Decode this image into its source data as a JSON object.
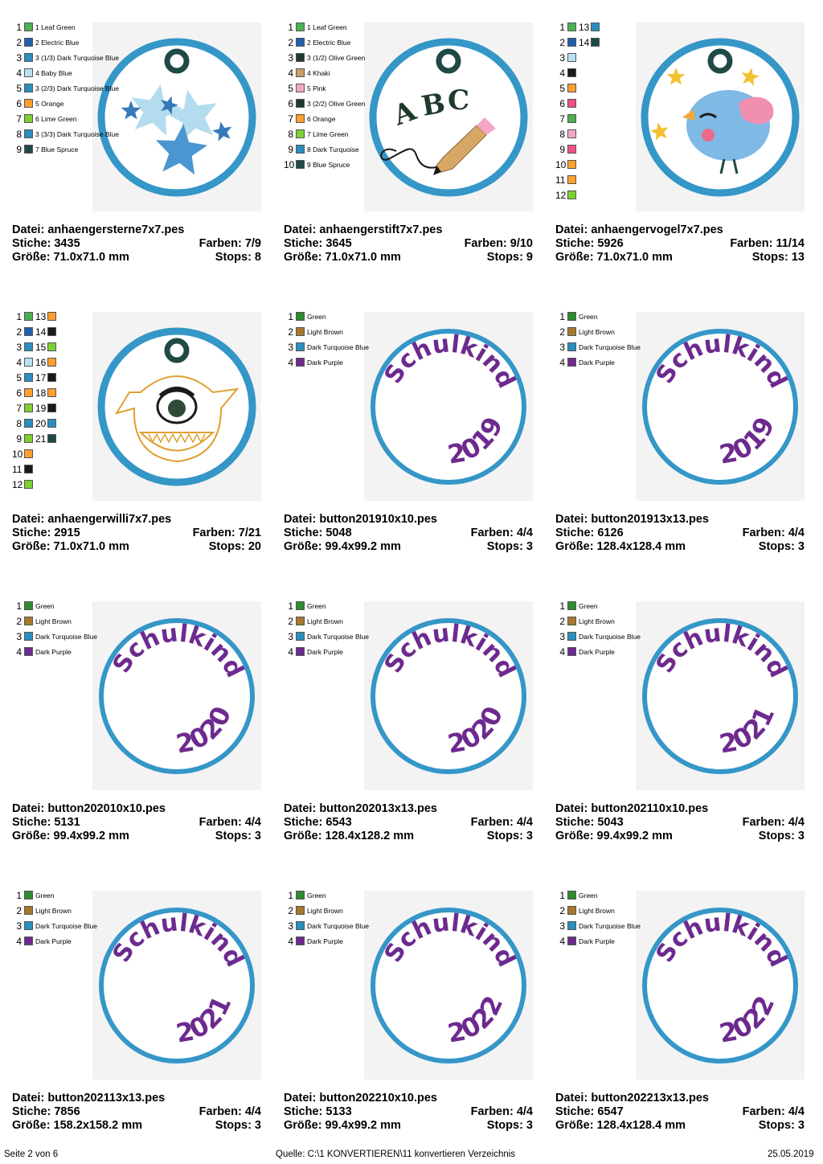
{
  "labels": {
    "file": "Datei: ",
    "stitches": "Stiche: ",
    "colors": "Farben: ",
    "size": "Größe: ",
    "stops": "Stops: "
  },
  "footer": {
    "page": "Seite 2 von 6",
    "source": "Quelle: C:\\1 KONVERTIEREN\\11 konvertieren Verzeichnis",
    "date": "25.05.2019"
  },
  "colors": {
    "ring": "#3596c8",
    "purple": "#6d2a8e",
    "eyelet": "#1f4a45",
    "background": "#f3f3f3"
  },
  "designs": [
    {
      "file": "anhaengersterne7x7.pes",
      "stitches": "3435",
      "colors": "7/9",
      "size": "71.0x71.0 mm",
      "stops": "8",
      "art": "stars",
      "palette": [
        {
          "n": "1",
          "c": "#4caf50",
          "t": "1 Leaf Green"
        },
        {
          "n": "2",
          "c": "#1f5fae",
          "t": "2 Electric Blue"
        },
        {
          "n": "3",
          "c": "#2a8fbf",
          "t": "3 (1/3) Dark Turquoise Blue"
        },
        {
          "n": "4",
          "c": "#b8e2f2",
          "t": "4 Baby Blue"
        },
        {
          "n": "5",
          "c": "#2a8fbf",
          "t": "3 (2/3) Dark Turquoise Blue"
        },
        {
          "n": "6",
          "c": "#ff9f2e",
          "t": "5 Orange"
        },
        {
          "n": "7",
          "c": "#7cd12e",
          "t": "6 Lime Green"
        },
        {
          "n": "8",
          "c": "#2a8fbf",
          "t": "3 (3/3) Dark Turquoise Blue"
        },
        {
          "n": "9",
          "c": "#1f4a45",
          "t": "7 Blue Spruce"
        }
      ]
    },
    {
      "file": "anhaengerstift7x7.pes",
      "stitches": "3645",
      "colors": "9/10",
      "size": "71.0x71.0 mm",
      "stops": "9",
      "art": "abc",
      "palette": [
        {
          "n": "1",
          "c": "#4caf50",
          "t": "1 Leaf Green"
        },
        {
          "n": "2",
          "c": "#1f5fae",
          "t": "2 Electric Blue"
        },
        {
          "n": "3",
          "c": "#1f3a2a",
          "t": "3 (1/2) Olive Green"
        },
        {
          "n": "4",
          "c": "#c9a06a",
          "t": "4 Khaki"
        },
        {
          "n": "5",
          "c": "#f4a6c8",
          "t": "5 Pink"
        },
        {
          "n": "6",
          "c": "#1f3a2a",
          "t": "3 (2/2) Olive Green"
        },
        {
          "n": "7",
          "c": "#ff9f2e",
          "t": "6 Orange"
        },
        {
          "n": "8",
          "c": "#7cd12e",
          "t": "7 Lime Green"
        },
        {
          "n": "9",
          "c": "#2a8fbf",
          "t": "8 Dark Turquoise"
        },
        {
          "n": "10",
          "c": "#1f4a45",
          "t": "9 Blue Spruce"
        }
      ]
    },
    {
      "file": "anhaengervogel7x7.pes",
      "stitches": "5926",
      "colors": "11/14",
      "size": "71.0x71.0 mm",
      "stops": "13",
      "art": "bird",
      "palette": [
        {
          "n": "1",
          "c": "#4caf50",
          "t": "",
          "c2": "#2a8fbf",
          "n2": "13"
        },
        {
          "n": "2",
          "c": "#1f5fae",
          "t": "",
          "c2": "#1f4a45",
          "n2": "14"
        },
        {
          "n": "3",
          "c": "#b8e2f2",
          "t": ""
        },
        {
          "n": "4",
          "c": "#1a1a1a",
          "t": ""
        },
        {
          "n": "5",
          "c": "#ff9f2e",
          "t": ""
        },
        {
          "n": "6",
          "c": "#ef4f8a",
          "t": ""
        },
        {
          "n": "7",
          "c": "#4caf50",
          "t": ""
        },
        {
          "n": "8",
          "c": "#f4a6c8",
          "t": ""
        },
        {
          "n": "9",
          "c": "#ef4f8a",
          "t": ""
        },
        {
          "n": "10",
          "c": "#ff9f2e",
          "t": ""
        },
        {
          "n": "11",
          "c": "#ff9f2e",
          "t": ""
        },
        {
          "n": "12",
          "c": "#7cd12e",
          "t": ""
        }
      ]
    },
    {
      "file": "anhaengerwilli7x7.pes",
      "stitches": "2915",
      "colors": "7/21",
      "size": "71.0x71.0 mm",
      "stops": "20",
      "art": "monster",
      "palette": [
        {
          "n": "1",
          "c": "#4caf50",
          "t": "",
          "c2": "#ff9f2e",
          "n2": "13"
        },
        {
          "n": "2",
          "c": "#1f5fae",
          "t": "",
          "c2": "#1a1a1a",
          "n2": "14"
        },
        {
          "n": "3",
          "c": "#2a8fbf",
          "t": "",
          "c2": "#7cd12e",
          "n2": "15"
        },
        {
          "n": "4",
          "c": "#b8e2f2",
          "t": "",
          "c2": "#ff9f2e",
          "n2": "16"
        },
        {
          "n": "5",
          "c": "#2a8fbf",
          "t": "",
          "c2": "#1a1a1a",
          "n2": "17"
        },
        {
          "n": "6",
          "c": "#ff9f2e",
          "t": "",
          "c2": "#ff9f2e",
          "n2": "18"
        },
        {
          "n": "7",
          "c": "#7cd12e",
          "t": "",
          "c2": "#1a1a1a",
          "n2": "19"
        },
        {
          "n": "8",
          "c": "#2a8fbf",
          "t": "",
          "c2": "#2a8fbf",
          "n2": "20"
        },
        {
          "n": "9",
          "c": "#7cd12e",
          "t": "",
          "c2": "#1f4a45",
          "n2": "21"
        },
        {
          "n": "10",
          "c": "#ff9f2e",
          "t": ""
        },
        {
          "n": "11",
          "c": "#1a1a1a",
          "t": ""
        },
        {
          "n": "12",
          "c": "#7cd12e",
          "t": ""
        }
      ]
    },
    {
      "file": "button201910x10.pes",
      "stitches": "5048",
      "colors": "4/4",
      "size": "99.4x99.2 mm",
      "stops": "3",
      "art": "button",
      "word": "Schulkind",
      "year": "2019",
      "palette": [
        {
          "n": "1",
          "c": "#2e8b2e",
          "t": "Green"
        },
        {
          "n": "2",
          "c": "#a6782e",
          "t": "Light Brown"
        },
        {
          "n": "3",
          "c": "#2a8fbf",
          "t": "Dark Turquoise Blue"
        },
        {
          "n": "4",
          "c": "#6d2a8e",
          "t": "Dark Purple"
        }
      ]
    },
    {
      "file": "button201913x13.pes",
      "stitches": "6126",
      "colors": "4/4",
      "size": "128.4x128.4 mm",
      "stops": "3",
      "art": "button",
      "word": "Schulkind",
      "year": "2019",
      "palette": [
        {
          "n": "1",
          "c": "#2e8b2e",
          "t": "Green"
        },
        {
          "n": "2",
          "c": "#a6782e",
          "t": "Light Brown"
        },
        {
          "n": "3",
          "c": "#2a8fbf",
          "t": "Dark Turquoise Blue"
        },
        {
          "n": "4",
          "c": "#6d2a8e",
          "t": "Dark Purple"
        }
      ]
    },
    {
      "file": "button202010x10.pes",
      "stitches": "5131",
      "colors": "4/4",
      "size": "99.4x99.2 mm",
      "stops": "3",
      "art": "button",
      "word": "Schulkind",
      "year": "2020",
      "palette": [
        {
          "n": "1",
          "c": "#2e8b2e",
          "t": "Green"
        },
        {
          "n": "2",
          "c": "#a6782e",
          "t": "Light Brown"
        },
        {
          "n": "3",
          "c": "#2a8fbf",
          "t": "Dark Turquoise Blue"
        },
        {
          "n": "4",
          "c": "#6d2a8e",
          "t": "Dark Purple"
        }
      ]
    },
    {
      "file": "button202013x13.pes",
      "stitches": "6543",
      "colors": "4/4",
      "size": "128.4x128.2 mm",
      "stops": "3",
      "art": "button",
      "word": "Schulkind",
      "year": "2020",
      "palette": [
        {
          "n": "1",
          "c": "#2e8b2e",
          "t": "Green"
        },
        {
          "n": "2",
          "c": "#a6782e",
          "t": "Light Brown"
        },
        {
          "n": "3",
          "c": "#2a8fbf",
          "t": "Dark Turquoise Blue"
        },
        {
          "n": "4",
          "c": "#6d2a8e",
          "t": "Dark Purple"
        }
      ]
    },
    {
      "file": "button202110x10.pes",
      "stitches": "5043",
      "colors": "4/4",
      "size": "99.4x99.2 mm",
      "stops": "3",
      "art": "button",
      "word": "Schulkind",
      "year": "2021",
      "palette": [
        {
          "n": "1",
          "c": "#2e8b2e",
          "t": "Green"
        },
        {
          "n": "2",
          "c": "#a6782e",
          "t": "Light Brown"
        },
        {
          "n": "3",
          "c": "#2a8fbf",
          "t": "Dark Turquoise Blue"
        },
        {
          "n": "4",
          "c": "#6d2a8e",
          "t": "Dark Purple"
        }
      ]
    },
    {
      "file": "button202113x13.pes",
      "stitches": "7856",
      "colors": "4/4",
      "size": "158.2x158.2 mm",
      "stops": "3",
      "art": "button",
      "word": "Schulkind",
      "year": "2021",
      "palette": [
        {
          "n": "1",
          "c": "#2e8b2e",
          "t": "Green"
        },
        {
          "n": "2",
          "c": "#a6782e",
          "t": "Light Brown"
        },
        {
          "n": "3",
          "c": "#2a8fbf",
          "t": "Dark Turquoise Blue"
        },
        {
          "n": "4",
          "c": "#6d2a8e",
          "t": "Dark Purple"
        }
      ]
    },
    {
      "file": "button202210x10.pes",
      "stitches": "5133",
      "colors": "4/4",
      "size": "99.4x99.2 mm",
      "stops": "3",
      "art": "button",
      "word": "Schulkind",
      "year": "2022",
      "palette": [
        {
          "n": "1",
          "c": "#2e8b2e",
          "t": "Green"
        },
        {
          "n": "2",
          "c": "#a6782e",
          "t": "Light Brown"
        },
        {
          "n": "3",
          "c": "#2a8fbf",
          "t": "Dark Turquoise Blue"
        },
        {
          "n": "4",
          "c": "#6d2a8e",
          "t": "Dark Purple"
        }
      ]
    },
    {
      "file": "button202213x13.pes",
      "stitches": "6547",
      "colors": "4/4",
      "size": "128.4x128.4 mm",
      "stops": "3",
      "art": "button",
      "word": "Schulkind",
      "year": "2022",
      "palette": [
        {
          "n": "1",
          "c": "#2e8b2e",
          "t": "Green"
        },
        {
          "n": "2",
          "c": "#a6782e",
          "t": "Light Brown"
        },
        {
          "n": "3",
          "c": "#2a8fbf",
          "t": "Dark Turquoise Blue"
        },
        {
          "n": "4",
          "c": "#6d2a8e",
          "t": "Dark Purple"
        }
      ]
    }
  ]
}
